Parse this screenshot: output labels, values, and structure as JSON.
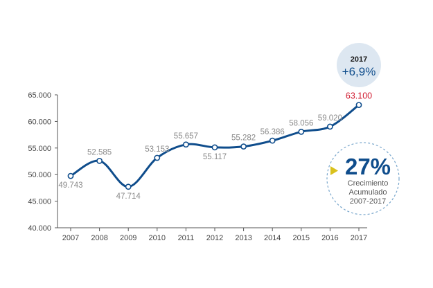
{
  "chart_data": {
    "type": "line",
    "categories": [
      "2007",
      "2008",
      "2009",
      "2010",
      "2011",
      "2012",
      "2013",
      "2014",
      "2015",
      "2016",
      "2017"
    ],
    "values": [
      49743,
      52585,
      47714,
      53153,
      55657,
      55117,
      55282,
      56386,
      58056,
      59020,
      63100
    ],
    "value_labels": [
      "49.743",
      "52.585",
      "47.714",
      "53.153",
      "55.657",
      "55.117",
      "55.282",
      "56.386",
      "58.056",
      "59.020",
      "63.100"
    ],
    "ylim": [
      40000,
      65000
    ],
    "yticks": [
      40000,
      45000,
      50000,
      55000,
      60000,
      65000
    ],
    "ytick_labels": [
      "40.000",
      "45.000",
      "50.000",
      "55.000",
      "60.000",
      "65.000"
    ],
    "xlabel": "",
    "ylabel": "",
    "title": "",
    "line_color": "#0f4d8c",
    "highlight_color": "#d01a2f"
  },
  "badge": {
    "year": "2017",
    "change": "+6,9%",
    "bg_color": "#dde7f1"
  },
  "cumulative": {
    "value": "27%",
    "line1": "Crecimiento",
    "line2": "Acumulado",
    "line3": "2007-2017",
    "arrow_color": "#d9c11d"
  }
}
